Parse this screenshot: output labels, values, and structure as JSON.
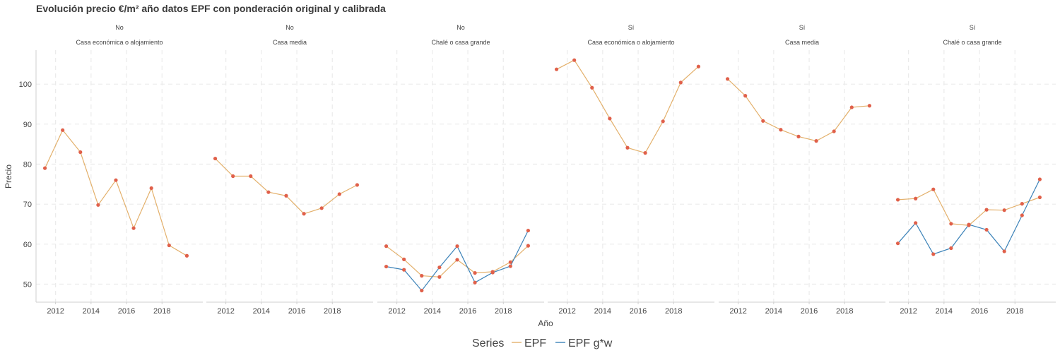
{
  "chart_data": {
    "type": "line",
    "title": "Evolución precio €/m² año datos EPF con ponderación original y calibrada",
    "xlabel": "Año",
    "ylabel": "Precio",
    "xlim": [
      2010.9,
      2020.3
    ],
    "ylim": [
      45.5,
      108.5
    ],
    "x_ticks": [
      2012,
      2014,
      2016,
      2018
    ],
    "y_ticks": [
      50,
      60,
      70,
      80,
      90,
      100
    ],
    "grid": true,
    "legend": {
      "title": "Series",
      "position": "bottom"
    },
    "series_meta": [
      {
        "name": "EPF",
        "color": "#e3b06b"
      },
      {
        "name": "EPF g*w",
        "color": "#3b82b8"
      }
    ],
    "point_color": "#e0604a",
    "x": [
      2011.4,
      2012.4,
      2013.4,
      2014.4,
      2015.4,
      2016.4,
      2017.4,
      2018.4,
      2019.4
    ],
    "panels": [
      {
        "strip_top": "No",
        "strip_bottom": "Casa económica o alojamiento",
        "series": [
          {
            "name": "EPF",
            "values": [
              79,
              88.5,
              83,
              69.8,
              76,
              64,
              74,
              59.7,
              57.1
            ]
          }
        ]
      },
      {
        "strip_top": "No",
        "strip_bottom": "Casa media",
        "series": [
          {
            "name": "EPF",
            "values": [
              81.4,
              77,
              77,
              73,
              72.1,
              67.6,
              69,
              72.5,
              74.8
            ]
          }
        ]
      },
      {
        "strip_top": "No",
        "strip_bottom": "Chalé o casa grande",
        "series": [
          {
            "name": "EPF",
            "values": [
              59.5,
              56.2,
              52.1,
              51.8,
              56.1,
              52.8,
              53.1,
              55.5,
              59.6
            ]
          },
          {
            "name": "EPF g*w",
            "values": [
              54.4,
              53.6,
              48.4,
              54.2,
              59.5,
              50.4,
              52.9,
              54.5,
              63.4
            ]
          }
        ]
      },
      {
        "strip_top": "Sí",
        "strip_bottom": "Casa económica o alojamiento",
        "series": [
          {
            "name": "EPF",
            "values": [
              103.7,
              106,
              99.1,
              91.4,
              84.1,
              82.8,
              90.7,
              100.4,
              104.4
            ]
          }
        ]
      },
      {
        "strip_top": "Sí",
        "strip_bottom": "Casa media",
        "series": [
          {
            "name": "EPF",
            "values": [
              101.3,
              97.1,
              90.8,
              88.6,
              86.9,
              85.8,
              88.2,
              94.2,
              94.6
            ]
          }
        ]
      },
      {
        "strip_top": "Sí",
        "strip_bottom": "Chalé o casa grande",
        "series": [
          {
            "name": "EPF",
            "values": [
              71.1,
              71.4,
              73.7,
              65.1,
              64.7,
              68.6,
              68.5,
              70.1,
              71.7
            ]
          },
          {
            "name": "EPF g*w",
            "values": [
              60.2,
              65.3,
              57.5,
              59,
              64.9,
              63.6,
              58.2,
              67.2,
              76.2
            ]
          }
        ]
      }
    ]
  }
}
